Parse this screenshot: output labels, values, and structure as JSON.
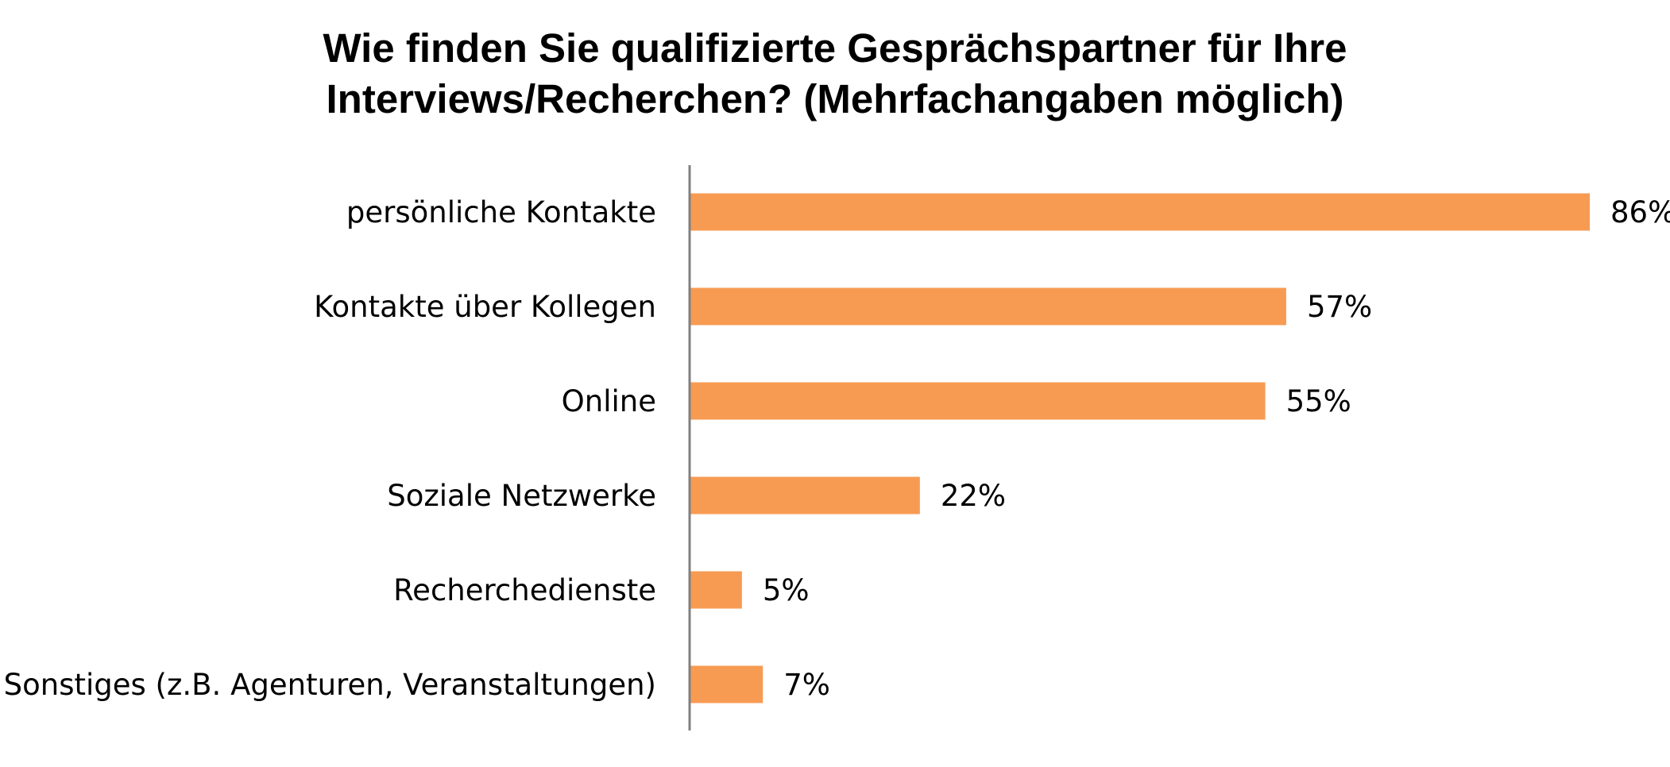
{
  "chart_data": {
    "type": "bar",
    "orientation": "horizontal",
    "title": "Wie finden Sie qualifizierte Gesprächspartner für Ihre Interviews/Recherchen? (Mehrfachangaben möglich)",
    "title_lines": [
      "Wie finden Sie qualifizierte Gesprächspartner für Ihre",
      "Interviews/Recherchen? (Mehrfachangaben möglich)"
    ],
    "categories": [
      "persönliche Kontakte",
      "Kontakte über Kollegen",
      "Online",
      "Soziale Netzwerke",
      "Recherchedienste",
      "Sonstiges (z.B. Agenturen, Veranstaltungen)"
    ],
    "values": [
      86,
      57,
      55,
      22,
      5,
      7
    ],
    "value_labels": [
      "86%",
      "57%",
      "55%",
      "22%",
      "5%",
      "7%"
    ],
    "unit": "%",
    "xlim": [
      0,
      86
    ],
    "bar_color": "#F79B53",
    "axis_color": "#808080",
    "grid": false,
    "legend": "none"
  }
}
